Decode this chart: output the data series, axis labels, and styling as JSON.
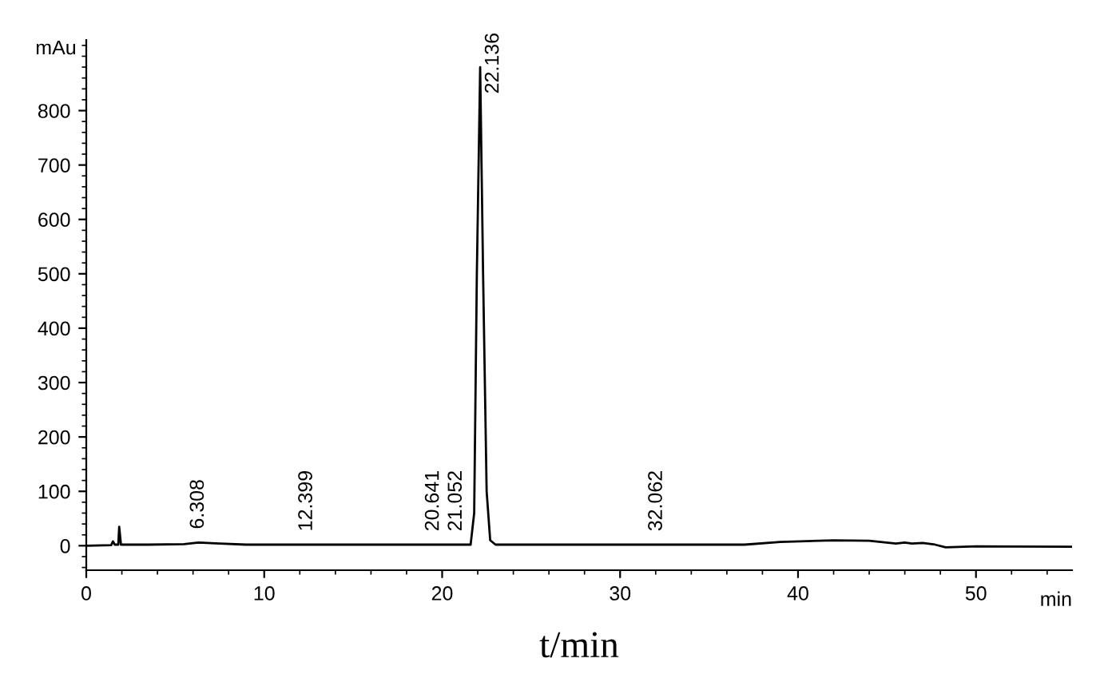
{
  "chart_data": {
    "type": "line",
    "xlabel": "t/min",
    "ylabel": "mAu",
    "x": [
      0,
      1.4,
      1.5,
      1.6,
      1.8,
      1.85,
      1.95,
      3.5,
      5.5,
      6.3,
      7.5,
      9,
      20,
      21.6,
      21.8,
      21.95,
      22.136,
      22.3,
      22.5,
      22.7,
      23,
      37,
      39,
      42,
      44,
      45.5,
      46,
      46.4,
      47,
      47.7,
      48.3,
      50,
      55.4
    ],
    "series": [
      {
        "color": "#000000",
        "values": [
          0,
          1,
          8,
          2,
          2,
          35,
          2,
          2,
          3,
          6,
          4,
          2,
          2,
          2,
          60,
          500,
          880,
          500,
          100,
          10,
          2,
          2,
          7,
          10,
          9,
          4,
          6,
          4,
          5,
          2,
          -3,
          -1,
          -2
        ]
      }
    ],
    "xlim": [
      0,
      55.4
    ],
    "ylim": [
      -45,
      930
    ],
    "xticks": [
      0,
      10,
      20,
      30,
      40,
      50
    ],
    "yticks": [
      0,
      100,
      200,
      300,
      400,
      500,
      600,
      700,
      800
    ],
    "grid": false,
    "marker": "none",
    "line_style": "solid",
    "annotations": [
      {
        "text": "6.308",
        "x": 6.308,
        "y": 6
      },
      {
        "text": "12.399",
        "x": 12.399,
        "y": 2
      },
      {
        "text": "20.641",
        "x": 20.641,
        "y": 2
      },
      {
        "text": "21.052",
        "x": 21.052,
        "y": 2
      },
      {
        "text": "22.136",
        "x": 22.136,
        "y": 880
      },
      {
        "text": "32.062",
        "x": 32.062,
        "y": 2
      },
      "min"
    ]
  }
}
